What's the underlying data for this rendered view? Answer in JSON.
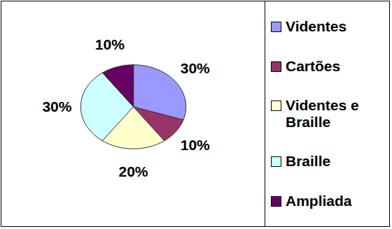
{
  "chart_data": {
    "type": "pie",
    "categories": [
      "Videntes",
      "Cartões",
      "Videntes e Braille",
      "Braille",
      "Ampliada"
    ],
    "values": [
      30,
      10,
      20,
      30,
      10
    ],
    "value_labels": [
      "30%",
      "10%",
      "20%",
      "30%",
      "10%"
    ],
    "colors": [
      "#9999ff",
      "#993366",
      "#ffffcc",
      "#ccffff",
      "#660066"
    ],
    "data_labels": true,
    "legend": "right"
  }
}
